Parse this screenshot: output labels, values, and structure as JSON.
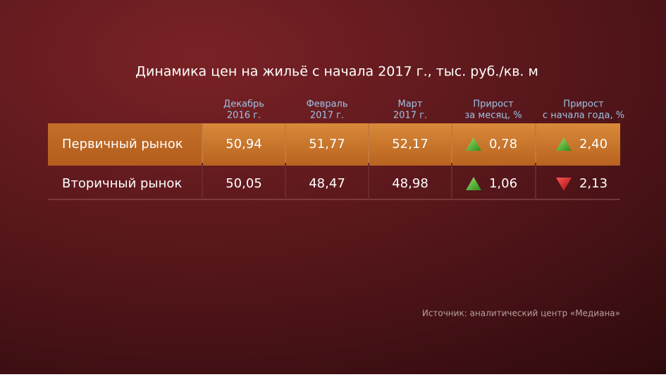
{
  "title": "Динамика цен на жильё с начала 2017 г., тыс. руб./кв. м",
  "columns": [
    {
      "lines": [
        "Декабрь",
        "2016 г."
      ]
    },
    {
      "lines": [
        "Февраль",
        "2017 г."
      ]
    },
    {
      "lines": [
        "Март",
        "2017 г."
      ]
    },
    {
      "lines": [
        "Прирост",
        "за месяц, %"
      ]
    },
    {
      "lines": [
        "Прирост",
        "с начала года, %"
      ]
    }
  ],
  "rows": [
    {
      "label": "Первичный рынок",
      "cells": [
        {
          "text": "50,94"
        },
        {
          "text": "51,77"
        },
        {
          "text": "52,17"
        },
        {
          "text": "0,78",
          "trend": "up"
        },
        {
          "text": "2,40",
          "trend": "up"
        }
      ]
    },
    {
      "label": "Вторичный рынок",
      "cells": [
        {
          "text": "50,05"
        },
        {
          "text": "48,47"
        },
        {
          "text": "48,98"
        },
        {
          "text": "1,06",
          "trend": "up"
        },
        {
          "text": "2,13",
          "trend": "down"
        }
      ]
    }
  ],
  "source": "Источник: аналитический центр «Медиана»"
}
